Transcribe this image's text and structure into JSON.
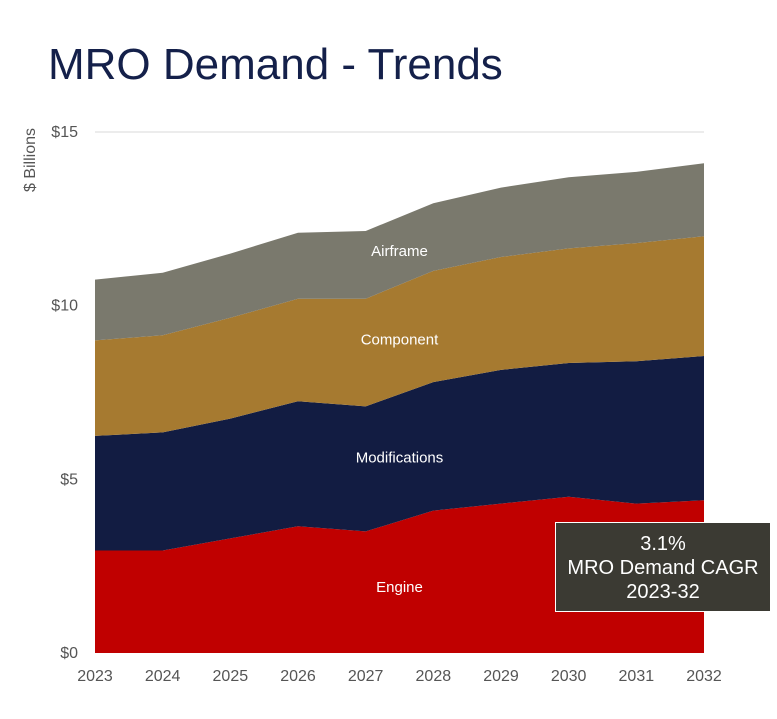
{
  "title": "MRO Demand - Trends",
  "callout": {
    "line1": "3.1%",
    "line2": "MRO Demand CAGR",
    "line3": "2023-32"
  },
  "colors": {
    "Engine": "#c00000",
    "Modifications": "#121c42",
    "Component": "#a67a30",
    "Airframe": "#7a796d"
  },
  "chart_data": {
    "type": "area",
    "stacked": true,
    "ylabel": "$ Billions",
    "ylim": [
      0,
      15
    ],
    "yticks": [
      0,
      5,
      10,
      15
    ],
    "ytick_labels": [
      "$0",
      "$5",
      "$10",
      "$15"
    ],
    "x": [
      "2023",
      "2024",
      "2025",
      "2026",
      "2027",
      "2028",
      "2029",
      "2030",
      "2031",
      "2032"
    ],
    "grid": "top gridline only",
    "series": [
      {
        "name": "Engine",
        "values": [
          2.95,
          2.95,
          3.3,
          3.65,
          3.5,
          4.1,
          4.3,
          4.5,
          4.3,
          4.4
        ]
      },
      {
        "name": "Modifications",
        "values": [
          3.3,
          3.4,
          3.45,
          3.6,
          3.6,
          3.7,
          3.85,
          3.85,
          4.1,
          4.15
        ]
      },
      {
        "name": "Component",
        "values": [
          2.75,
          2.8,
          2.9,
          2.95,
          3.1,
          3.2,
          3.25,
          3.3,
          3.4,
          3.45
        ]
      },
      {
        "name": "Airframe",
        "values": [
          1.75,
          1.8,
          1.85,
          1.9,
          1.95,
          1.95,
          2.0,
          2.05,
          2.05,
          2.1
        ]
      }
    ]
  }
}
